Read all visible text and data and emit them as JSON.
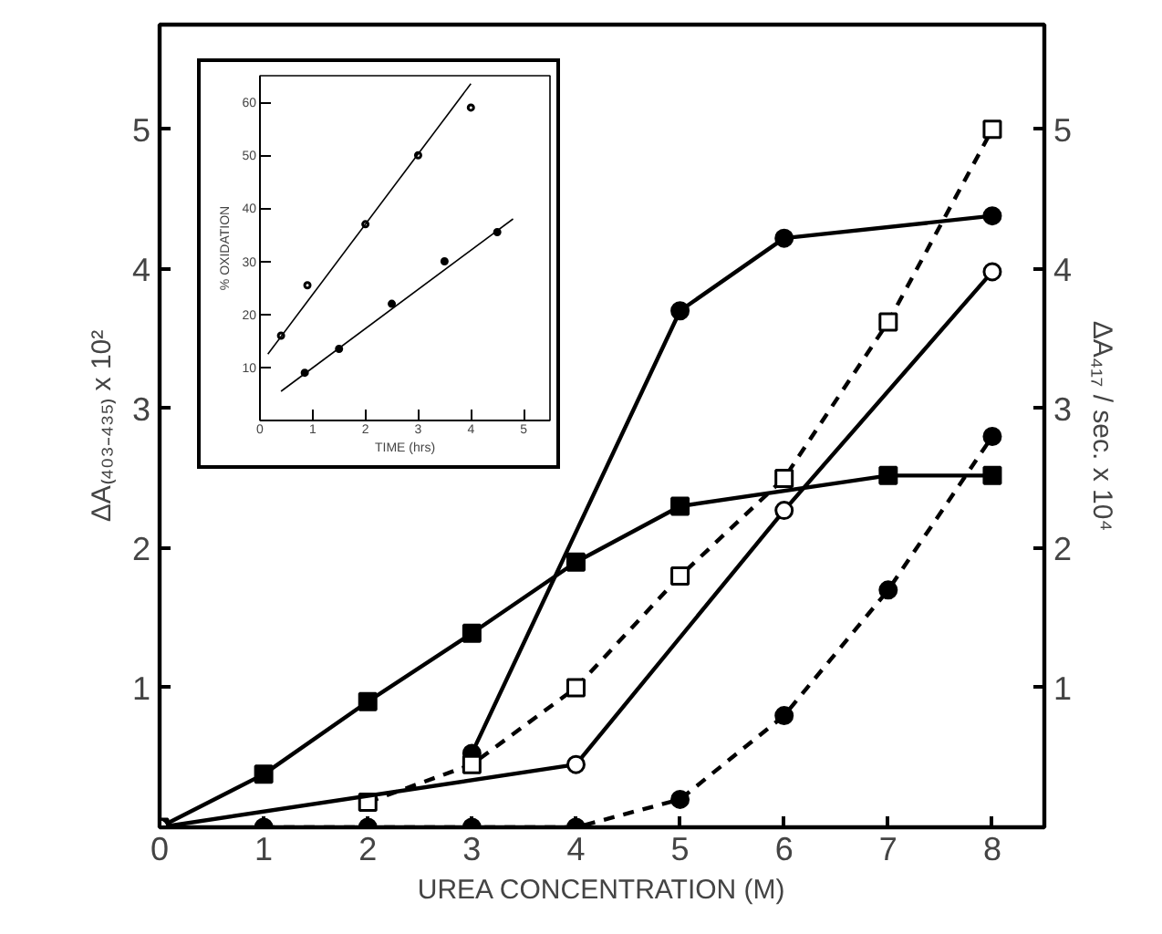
{
  "chart_data": [
    {
      "type": "line",
      "xlabel": "UREA CONCENTRATION (M)",
      "ylabel": "ΔA₍₄₀₃₋₄₃₅₎ x 10²",
      "y2label": "ΔA₄₁₇ / sec. x 10⁴",
      "xlim": [
        0,
        8.5
      ],
      "ylim": [
        0,
        5.75
      ],
      "y2lim": [
        0,
        5.75
      ],
      "xticks": [
        0,
        1,
        2,
        3,
        4,
        5,
        6,
        7,
        8
      ],
      "yticks": [
        1,
        2,
        3,
        4,
        5
      ],
      "y2ticks": [
        1,
        2,
        3,
        4,
        5
      ],
      "grid": false,
      "series": [
        {
          "color": "#000000",
          "marker": "circle",
          "line_style": "solid",
          "x": [
            3,
            5,
            6,
            8
          ],
          "values": [
            0.53,
            3.7,
            4.22,
            4.38
          ]
        },
        {
          "color": "#000000",
          "marker": "square",
          "line_style": "solid",
          "x": [
            0,
            1,
            2,
            3,
            4,
            5,
            7,
            8
          ],
          "values": [
            0,
            0.38,
            0.9,
            1.39,
            1.9,
            2.3,
            2.52,
            2.52
          ]
        },
        {
          "color": "#000000",
          "marker": "square_open",
          "line_style": "dashed",
          "x": [
            2,
            3,
            4,
            5,
            6,
            7,
            8
          ],
          "values": [
            0.18,
            0.45,
            1.0,
            1.8,
            2.5,
            3.62,
            5.0
          ]
        },
        {
          "color": "#000000",
          "marker": "circle_open",
          "line_style": "solid",
          "x": [
            0,
            4,
            6,
            8
          ],
          "values": [
            0,
            0.45,
            2.27,
            3.98
          ]
        },
        {
          "color": "#000000",
          "marker": "circle",
          "line_style": "dashed",
          "x": [
            1,
            2,
            3,
            4,
            5,
            6,
            7,
            8
          ],
          "values": [
            0,
            0,
            0,
            0,
            0.2,
            0.8,
            1.7,
            2.8
          ]
        }
      ]
    },
    {
      "type": "scatter",
      "xlabel": "TIME (hrs)",
      "ylabel": "% OXIDATION",
      "xlim": [
        0,
        5.5
      ],
      "ylim": [
        0,
        65
      ],
      "xticks": [
        0,
        1,
        2,
        3,
        4,
        5
      ],
      "yticks": [
        10,
        20,
        30,
        40,
        50,
        60
      ],
      "grid": false,
      "series": [
        {
          "color": "#000000",
          "marker": "circle_open",
          "x": [
            0.4,
            0.9,
            2,
            3,
            4
          ],
          "values": [
            16,
            25.5,
            37,
            50,
            59
          ]
        },
        {
          "color": "#000000",
          "marker": "circle",
          "x": [
            0.85,
            1.5,
            2.5,
            3.5,
            4.5
          ],
          "values": [
            9,
            13.5,
            22,
            30,
            35.5
          ]
        },
        {
          "type": "line",
          "color": "#000000",
          "marker": "none",
          "line_style": "solid",
          "x": [
            0.15,
            4
          ],
          "values": [
            12.5,
            63.5
          ]
        },
        {
          "type": "line",
          "color": "#000000",
          "marker": "none",
          "line_style": "solid",
          "x": [
            0.4,
            4.8
          ],
          "values": [
            5.5,
            38
          ]
        }
      ]
    }
  ]
}
